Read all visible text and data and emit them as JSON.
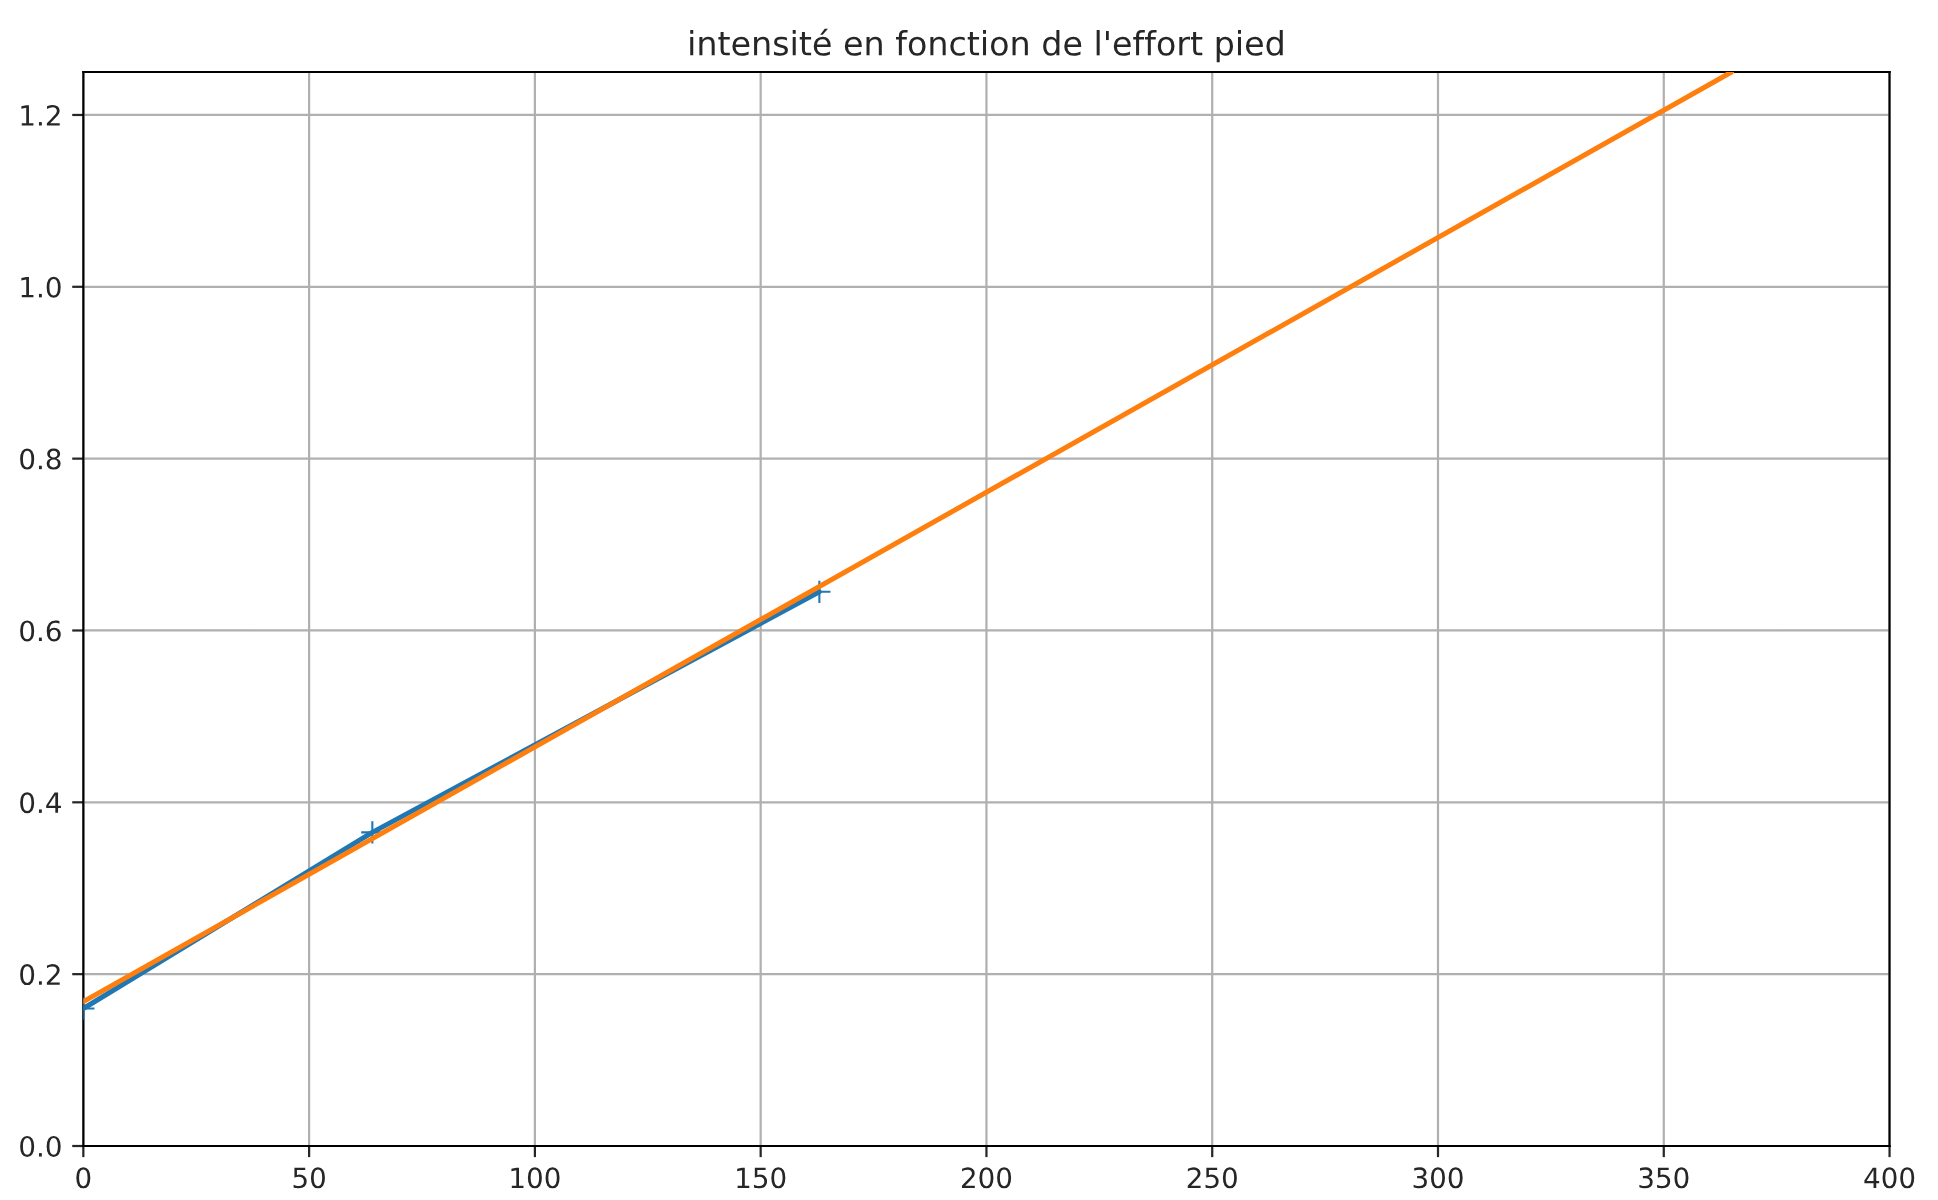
{
  "chart_data": {
    "type": "line",
    "title": "intensité en fonction de l'effort pied",
    "series": [
      {
        "color": "#1f77b4",
        "x": [
          0,
          64,
          163
        ],
        "values": [
          0.16,
          0.365,
          0.645
        ],
        "marker": "cross"
      },
      {
        "color": "#ff7f0e",
        "x": [
          0,
          365
        ],
        "values": [
          0.168,
          1.25
        ],
        "marker": "none"
      }
    ],
    "xlim": [
      0,
      400
    ],
    "xticks": [
      0,
      50,
      100,
      150,
      200,
      250,
      300,
      350,
      400
    ],
    "ylim": [
      0,
      1.25
    ],
    "yticks": [
      {
        "value": 0,
        "label": "0.0"
      },
      {
        "value": 0.2,
        "label": "0.2"
      },
      {
        "value": 0.4,
        "label": "0.4"
      },
      {
        "value": 0.6,
        "label": "0.6"
      },
      {
        "value": 0.8,
        "label": "0.8"
      },
      {
        "value": 1.0,
        "label": "1.0"
      },
      {
        "value": 1.2,
        "label": "1.2"
      }
    ],
    "grid": true
  }
}
